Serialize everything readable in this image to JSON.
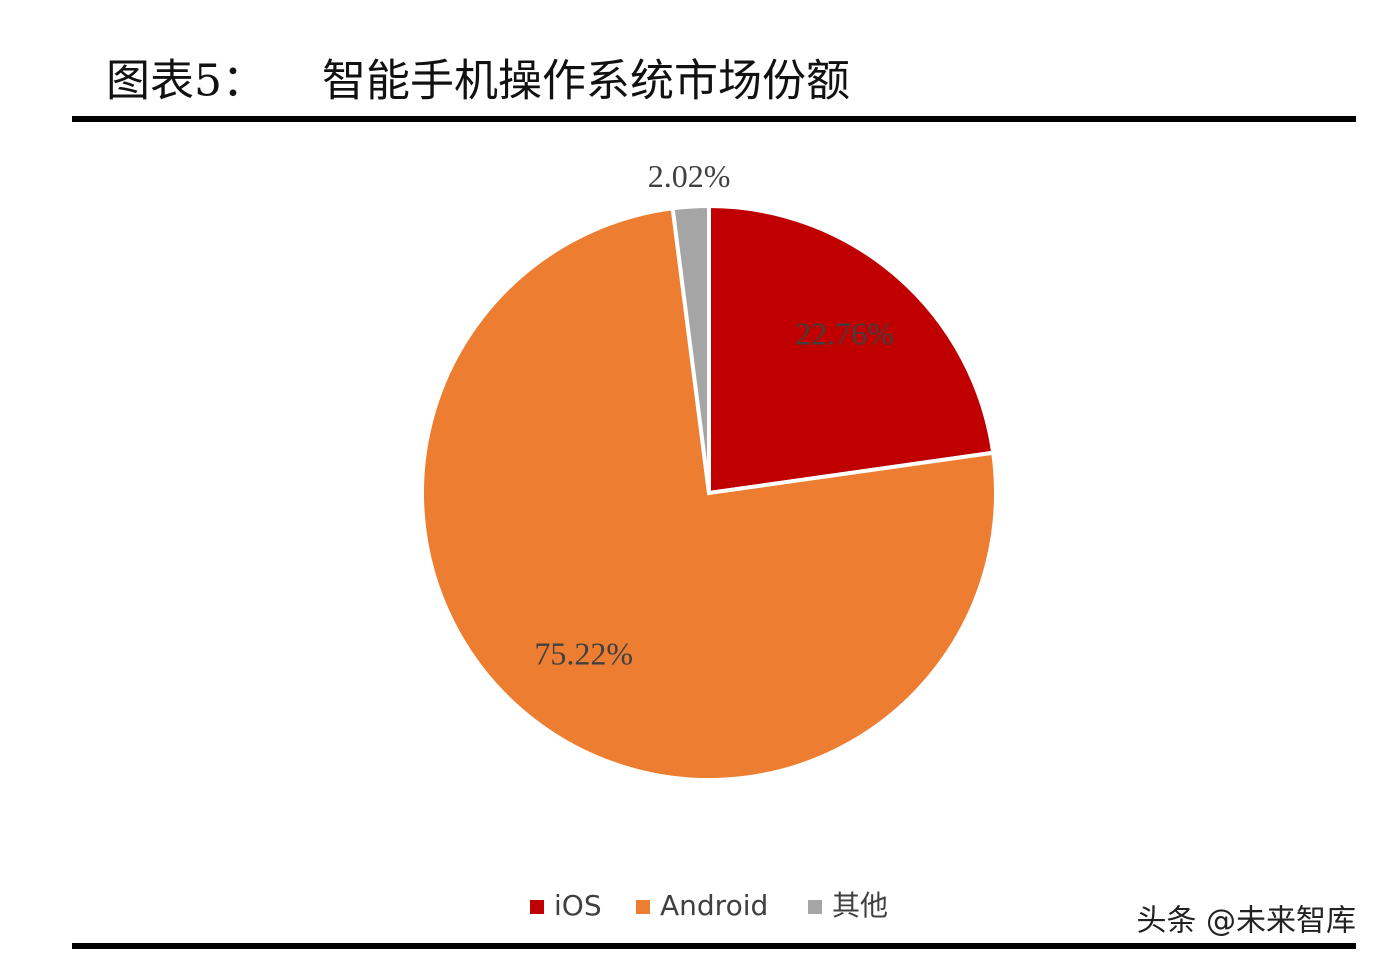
{
  "chart_data": {
    "type": "pie",
    "title": "图表5：    智能手机操作系统市场份额",
    "categories": [
      "iOS",
      "Android",
      "其他"
    ],
    "values": [
      22.76,
      75.22,
      2.02
    ],
    "value_labels": [
      "22.76%",
      "75.22%",
      "2.02%"
    ],
    "colors": [
      "#c00000",
      "#ed7d31",
      "#a5a5a5"
    ],
    "legend": "bottom"
  },
  "watermark": "头条 @未来智库"
}
